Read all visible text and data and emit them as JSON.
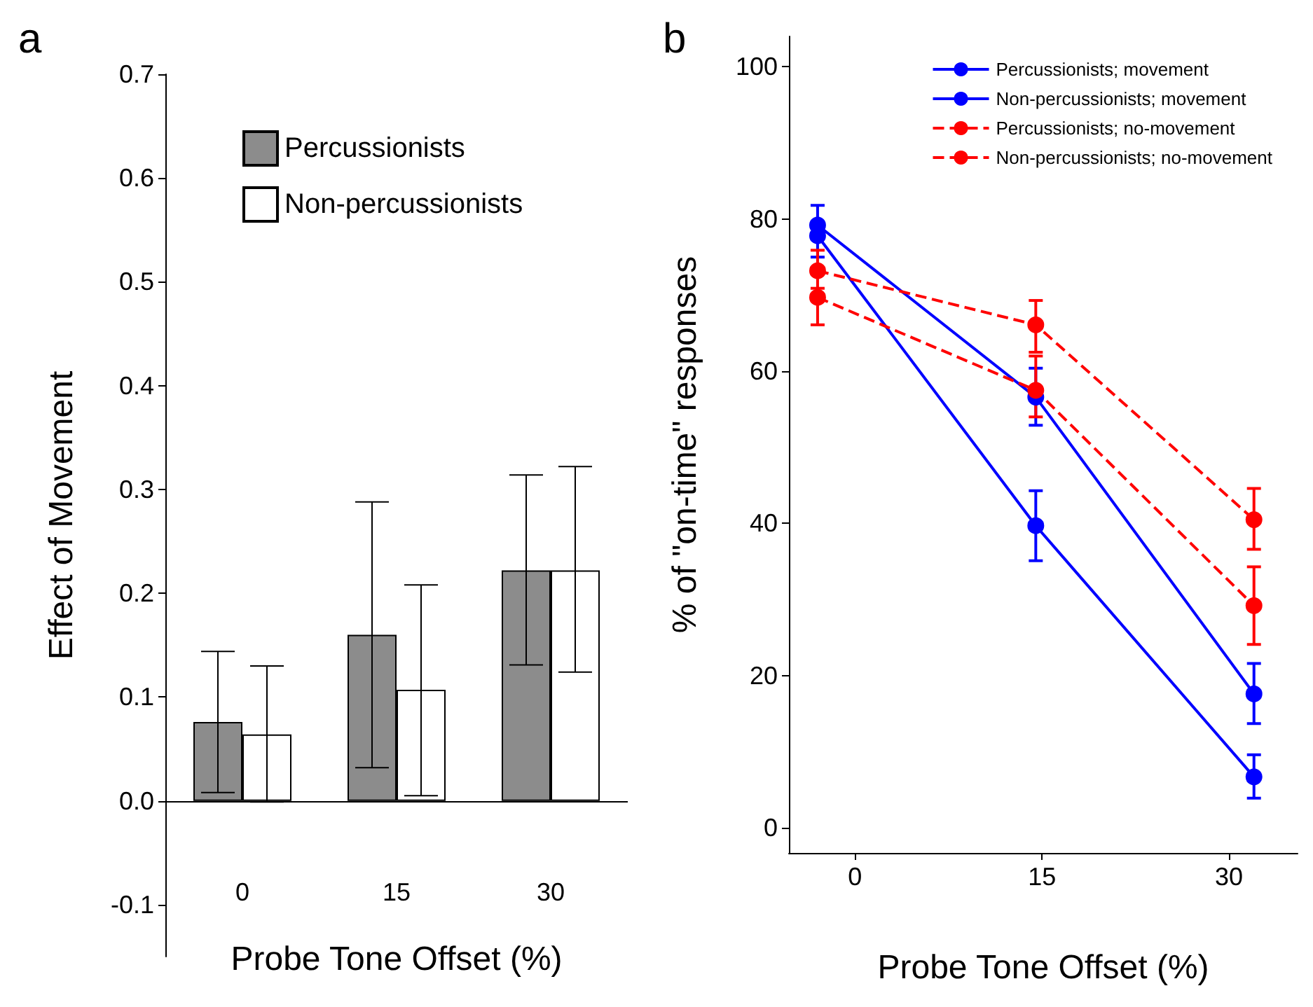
{
  "chart_data": [
    {
      "type": "bar",
      "title": "a",
      "xlabel": "Probe Tone Offset (%)",
      "ylabel": "Effect of Movement",
      "categories": [
        "0",
        "15",
        "30"
      ],
      "series": [
        {
          "name": "Percussionists",
          "color": "#8c8c8c",
          "values": [
            0.076,
            0.16,
            0.222
          ],
          "errors": [
            [
              0.008,
              0.144
            ],
            [
              0.032,
              0.288
            ],
            [
              0.131,
              0.314
            ]
          ]
        },
        {
          "name": "Non-percussionists",
          "color": "#ffffff",
          "values": [
            0.064,
            0.107,
            0.222
          ],
          "errors": [
            [
              -0.001,
              0.13
            ],
            [
              0.005,
              0.208
            ],
            [
              0.124,
              0.322
            ]
          ]
        }
      ],
      "ylim": [
        -0.15,
        0.7
      ],
      "yticks": [
        -0.1,
        {
          "value": 0,
          "label": "0.0"
        },
        0.1,
        0.2,
        0.3,
        0.4,
        0.5,
        0.6,
        0.7
      ],
      "ref_lines": [
        {
          "axis": "y",
          "value": 0,
          "color": "#000000"
        }
      ],
      "legend": "top",
      "grid": false
    },
    {
      "type": "line",
      "title": "b",
      "xlabel": "Probe Tone Offset (%)",
      "ylabel": "% of \"on-time\" responses",
      "x": [
        -3,
        14.5,
        32
      ],
      "series": [
        {
          "name": "Percussionists; movement",
          "color": "#0000ff",
          "values": [
            77.8,
            39.7,
            6.7
          ],
          "errors": [
            null,
            [
              35.1,
              44.3
            ],
            [
              3.9,
              9.6
            ]
          ],
          "marker": "circle",
          "line_style": "solid"
        },
        {
          "name": "Non-percussionists; movement",
          "color": "#0000ff",
          "values": [
            79.2,
            56.6,
            17.6
          ],
          "errors": [
            [
              75,
              81.8
            ],
            [
              52.9,
              60.4
            ],
            [
              13.7,
              21.6
            ]
          ],
          "marker": "circle",
          "line_style": "solid"
        },
        {
          "name": "Percussionists; no-movement",
          "color": "#ff0000",
          "values": [
            69.7,
            57.5,
            29.2
          ],
          "errors": [
            [
              66.1,
              69.7
            ],
            [
              54,
              62
            ],
            [
              24.1,
              34.3
            ]
          ],
          "marker": "circle",
          "line_style": "dashed"
        },
        {
          "name": "Non-percussionists; no-movement",
          "color": "#ff0000",
          "values": [
            73.2,
            66.1,
            40.5
          ],
          "errors": [
            [
              70.9,
              75.9
            ],
            [
              62.5,
              69.3
            ],
            [
              36.6,
              44.6
            ]
          ],
          "marker": "circle",
          "line_style": "dashed"
        }
      ],
      "xlim": [
        -5.3,
        35.5
      ],
      "xticks": [
        0,
        15,
        30
      ],
      "ylim": [
        -3.3,
        104
      ],
      "yticks": [
        0,
        20,
        40,
        60,
        80,
        100
      ],
      "legend": "top right",
      "grid": false
    }
  ]
}
